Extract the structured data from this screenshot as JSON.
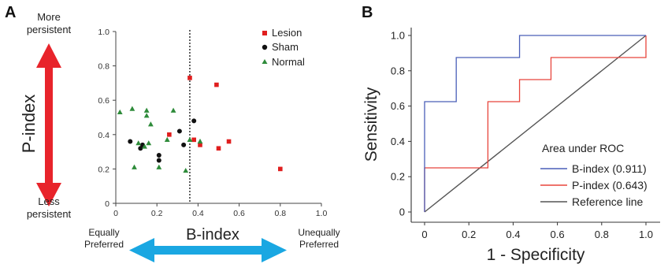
{
  "panel_a": {
    "letter": "A",
    "top_label_line1": "More",
    "top_label_line2": "persistent",
    "bottom_label_line1": "Less",
    "bottom_label_line2": "persistent",
    "y_axis_label": "P-index",
    "x_axis_label": "B-index",
    "left_x_label_line1": "Equally",
    "left_x_label_line2": "Preferred",
    "right_x_label_line1": "Unequally",
    "right_x_label_line2": "Preferred",
    "arrow_vertical_color": "#e8242b",
    "arrow_horizontal_color": "#1aa7e2"
  },
  "panel_b": {
    "letter": "B",
    "legend_title": "Area under ROC"
  },
  "chart_data": [
    {
      "type": "scatter",
      "xlabel": "B-index",
      "ylabel": "P-index",
      "xlim": [
        0,
        1.0
      ],
      "ylim": [
        0,
        1.0
      ],
      "xticks": [
        "0",
        "0.2",
        "0.4",
        "0.6",
        "0.8",
        "1.0"
      ],
      "yticks": [
        "0",
        "0.2",
        "0.4",
        "0.6",
        "0.8",
        "1.0"
      ],
      "threshold_x": 0.36,
      "legend_position": "top-right",
      "grid": false,
      "series": [
        {
          "name": "Lesion",
          "marker": "square",
          "color": "#e01e1e",
          "points": [
            [
              0.36,
              0.73
            ],
            [
              0.49,
              0.69
            ],
            [
              0.26,
              0.4
            ],
            [
              0.38,
              0.37
            ],
            [
              0.41,
              0.34
            ],
            [
              0.5,
              0.32
            ],
            [
              0.55,
              0.36
            ],
            [
              0.8,
              0.2
            ]
          ]
        },
        {
          "name": "Sham",
          "marker": "circle",
          "color": "#111111",
          "points": [
            [
              0.38,
              0.48
            ],
            [
              0.31,
              0.42
            ],
            [
              0.07,
              0.36
            ],
            [
              0.12,
              0.32
            ],
            [
              0.21,
              0.28
            ],
            [
              0.21,
              0.25
            ],
            [
              0.33,
              0.34
            ],
            [
              0.13,
              0.34
            ]
          ]
        },
        {
          "name": "Normal",
          "marker": "triangle",
          "color": "#2e8b3a",
          "points": [
            [
              0.02,
              0.53
            ],
            [
              0.08,
              0.55
            ],
            [
              0.15,
              0.54
            ],
            [
              0.15,
              0.51
            ],
            [
              0.17,
              0.46
            ],
            [
              0.28,
              0.54
            ],
            [
              0.11,
              0.35
            ],
            [
              0.14,
              0.33
            ],
            [
              0.25,
              0.37
            ],
            [
              0.36,
              0.37
            ],
            [
              0.41,
              0.36
            ],
            [
              0.09,
              0.21
            ],
            [
              0.21,
              0.21
            ],
            [
              0.34,
              0.19
            ],
            [
              0.16,
              0.35
            ]
          ]
        }
      ]
    },
    {
      "type": "line",
      "xlabel": "1 - Specificity",
      "ylabel": "Sensitivity",
      "xlim": [
        0,
        1.0
      ],
      "ylim": [
        0,
        1.0
      ],
      "xticks": [
        "0",
        "0.2",
        "0.4",
        "0.6",
        "0.8",
        "1.0"
      ],
      "yticks": [
        "0",
        "0.2",
        "0.4",
        "0.6",
        "0.8",
        "1.0"
      ],
      "legend_title": "Area under ROC",
      "legend_position": "bottom-right",
      "grid": false,
      "series": [
        {
          "name": "B-index (0.911)",
          "color": "#4a5fb8",
          "x": [
            0,
            0,
            0.143,
            0.143,
            0.429,
            0.429,
            1.0
          ],
          "y": [
            0,
            0.625,
            0.625,
            0.875,
            0.875,
            1.0,
            1.0
          ]
        },
        {
          "name": "P-index (0.643)",
          "color": "#e8453c",
          "x": [
            0,
            0,
            0.286,
            0.286,
            0.429,
            0.429,
            0.571,
            0.571,
            1.0,
            1.0
          ],
          "y": [
            0,
            0.25,
            0.25,
            0.625,
            0.625,
            0.75,
            0.75,
            0.875,
            0.875,
            1.0
          ]
        },
        {
          "name": "Reference line",
          "color": "#555555",
          "x": [
            0,
            1.0
          ],
          "y": [
            0,
            1.0
          ]
        }
      ]
    }
  ]
}
